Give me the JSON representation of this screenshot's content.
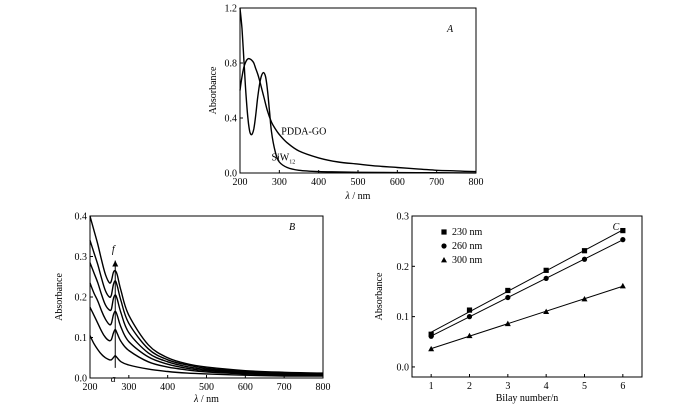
{
  "chart_data": [
    {
      "panel": "A",
      "type": "line",
      "xlabel_symbol": "λ",
      "xlabel_unit": "/ nm",
      "ylabel": "Absorbance",
      "xlim": [
        200,
        800
      ],
      "ylim": [
        0,
        1.2
      ],
      "xticks": [
        "200",
        "300",
        "400",
        "500",
        "600",
        "700",
        "800"
      ],
      "yticks": [
        "0.0",
        "0.4",
        "0.8",
        "1.2"
      ],
      "series": [
        {
          "name": "PDDA-GO",
          "x": [
            200,
            205,
            210,
            215,
            220,
            225,
            230,
            235,
            240,
            245,
            250,
            260,
            270,
            280,
            290,
            300,
            320,
            350,
            400,
            450,
            500,
            550,
            600,
            650,
            700,
            750,
            800
          ],
          "y": [
            0.6,
            0.7,
            0.77,
            0.81,
            0.83,
            0.83,
            0.82,
            0.8,
            0.76,
            0.72,
            0.67,
            0.56,
            0.45,
            0.37,
            0.32,
            0.28,
            0.22,
            0.16,
            0.11,
            0.08,
            0.065,
            0.05,
            0.04,
            0.03,
            0.02,
            0.015,
            0.01
          ]
        },
        {
          "name": "SiW12",
          "x": [
            200,
            205,
            210,
            215,
            220,
            225,
            230,
            235,
            240,
            245,
            250,
            255,
            260,
            265,
            270,
            275,
            280,
            290,
            300,
            320,
            350,
            400,
            450,
            500,
            600,
            700,
            800
          ],
          "y": [
            1.2,
            1.05,
            0.82,
            0.58,
            0.4,
            0.3,
            0.28,
            0.32,
            0.42,
            0.55,
            0.65,
            0.71,
            0.73,
            0.7,
            0.6,
            0.45,
            0.3,
            0.15,
            0.08,
            0.04,
            0.02,
            0.01,
            0.008,
            0.005,
            0.003,
            0.002,
            0.001
          ]
        }
      ],
      "annotations": {
        "label_a": "PDDA-GO",
        "label_b": "SiW",
        "label_b_sub": "12"
      }
    },
    {
      "panel": "B",
      "type": "line",
      "xlabel_symbol": "λ",
      "xlabel_unit": "/ nm",
      "ylabel": "Absorbance",
      "xlim": [
        200,
        800
      ],
      "ylim": [
        0,
        0.4
      ],
      "xticks": [
        "200",
        "300",
        "400",
        "500",
        "600",
        "700",
        "800"
      ],
      "yticks": [
        "0.0",
        "0.1",
        "0.2",
        "0.3",
        "0.4"
      ],
      "x": [
        200,
        210,
        220,
        230,
        240,
        250,
        255,
        260,
        265,
        270,
        280,
        300,
        350,
        400,
        450,
        500,
        600,
        700,
        800
      ],
      "series": [
        {
          "y": [
            0.105,
            0.085,
            0.07,
            0.058,
            0.05,
            0.045,
            0.045,
            0.05,
            0.055,
            0.05,
            0.04,
            0.032,
            0.022,
            0.016,
            0.012,
            0.01,
            0.007,
            0.005,
            0.005
          ]
        },
        {
          "y": [
            0.175,
            0.155,
            0.135,
            0.115,
            0.1,
            0.092,
            0.095,
            0.11,
            0.12,
            0.11,
            0.09,
            0.068,
            0.04,
            0.027,
            0.02,
            0.015,
            0.01,
            0.007,
            0.006
          ]
        },
        {
          "y": [
            0.235,
            0.21,
            0.19,
            0.165,
            0.145,
            0.132,
            0.135,
            0.155,
            0.165,
            0.155,
            0.125,
            0.09,
            0.052,
            0.034,
            0.024,
            0.018,
            0.012,
            0.009,
            0.008
          ]
        },
        {
          "y": [
            0.285,
            0.26,
            0.235,
            0.205,
            0.18,
            0.168,
            0.17,
            0.195,
            0.205,
            0.195,
            0.16,
            0.112,
            0.062,
            0.04,
            0.028,
            0.021,
            0.014,
            0.011,
            0.01
          ]
        },
        {
          "y": [
            0.34,
            0.31,
            0.28,
            0.245,
            0.215,
            0.2,
            0.205,
            0.23,
            0.24,
            0.228,
            0.19,
            0.135,
            0.072,
            0.045,
            0.032,
            0.024,
            0.016,
            0.012,
            0.011
          ]
        },
        {
          "y": [
            0.4,
            0.365,
            0.33,
            0.29,
            0.255,
            0.235,
            0.24,
            0.26,
            0.265,
            0.255,
            0.215,
            0.155,
            0.082,
            0.05,
            0.035,
            0.027,
            0.018,
            0.014,
            0.012
          ]
        }
      ],
      "annotations": {
        "label_start": "a",
        "label_end": "f"
      }
    },
    {
      "panel": "C",
      "type": "scatter",
      "xlabel": "Bilay number/n",
      "ylabel": "Absorbance",
      "xlim": [
        0.5,
        6.5
      ],
      "ylim": [
        -0.02,
        0.3
      ],
      "xticks": [
        "1",
        "2",
        "3",
        "4",
        "5",
        "6"
      ],
      "yticks": [
        "0.0",
        "0.1",
        "0.2",
        "0.3"
      ],
      "categories": [
        1,
        2,
        3,
        4,
        5,
        6
      ],
      "series": [
        {
          "name": "230 nm",
          "marker": "square",
          "values": [
            0.065,
            0.113,
            0.152,
            0.192,
            0.231,
            0.271
          ]
        },
        {
          "name": "260 nm",
          "marker": "circle",
          "values": [
            0.061,
            0.1,
            0.138,
            0.176,
            0.214,
            0.253
          ]
        },
        {
          "name": "300 nm",
          "marker": "triangle",
          "values": [
            0.036,
            0.062,
            0.086,
            0.11,
            0.135,
            0.161
          ]
        }
      ]
    }
  ]
}
